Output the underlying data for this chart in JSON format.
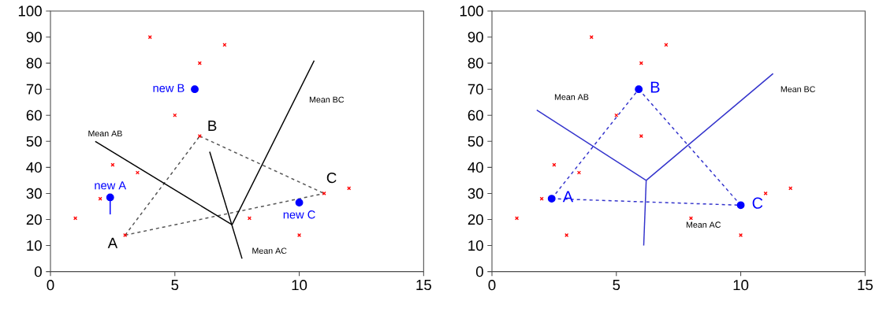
{
  "chart_data": [
    {
      "type": "scatter",
      "xlim": [
        0,
        15
      ],
      "ylim": [
        0,
        100
      ],
      "xticks": [
        0,
        5,
        10,
        15
      ],
      "yticks": [
        0,
        10,
        20,
        30,
        40,
        50,
        60,
        70,
        80,
        90,
        100
      ],
      "grid": false,
      "series": [
        {
          "type": "scatter",
          "marker": "cross",
          "color": "#ff0000",
          "x": [
            1,
            2,
            2.5,
            3,
            3.5,
            4,
            5,
            6,
            6,
            7,
            8,
            10,
            11,
            12
          ],
          "values": [
            20.5,
            28,
            41,
            14,
            38,
            90,
            60,
            80,
            52,
            87,
            20.5,
            14,
            30,
            32
          ]
        },
        {
          "type": "line",
          "line_style": "dashed",
          "color": "#555555",
          "x": [
            3,
            6
          ],
          "values": [
            14,
            52
          ]
        },
        {
          "type": "line",
          "line_style": "dashed",
          "color": "#555555",
          "x": [
            6,
            11
          ],
          "values": [
            52,
            30
          ]
        },
        {
          "type": "line",
          "line_style": "dashed",
          "color": "#555555",
          "x": [
            3,
            11
          ],
          "values": [
            14,
            30
          ]
        },
        {
          "type": "line",
          "line_style": "solid",
          "color": "#000000",
          "x": [
            1.8,
            7.3
          ],
          "values": [
            50,
            18
          ]
        },
        {
          "type": "line",
          "line_style": "solid",
          "color": "#000000",
          "x": [
            7.3,
            10.6
          ],
          "values": [
            18,
            81
          ]
        },
        {
          "type": "line",
          "line_style": "solid",
          "color": "#000000",
          "x": [
            6.4,
            7.7
          ],
          "values": [
            46,
            5
          ]
        },
        {
          "type": "line",
          "line_style": "solid",
          "color": "#0000ff",
          "x": [
            2.4,
            2.4
          ],
          "values": [
            28.5,
            22
          ]
        },
        {
          "type": "scatter",
          "marker": "circle",
          "name": "new A",
          "color": "#0000ff",
          "x": [
            2.4
          ],
          "values": [
            28.5
          ]
        },
        {
          "type": "scatter",
          "marker": "circle",
          "name": "new B",
          "color": "#0000ff",
          "x": [
            5.8
          ],
          "values": [
            70
          ]
        },
        {
          "type": "scatter",
          "marker": "circle",
          "name": "new C",
          "color": "#0000ff",
          "x": [
            10
          ],
          "values": [
            26.5
          ]
        }
      ],
      "annotations": [
        "Mean AB",
        "Mean BC",
        "Mean AC",
        "A",
        "B",
        "C"
      ]
    },
    {
      "type": "scatter",
      "xlim": [
        0,
        15
      ],
      "ylim": [
        0,
        100
      ],
      "xticks": [
        0,
        5,
        10,
        15
      ],
      "yticks": [
        0,
        10,
        20,
        30,
        40,
        50,
        60,
        70,
        80,
        90,
        100
      ],
      "grid": false,
      "series": [
        {
          "type": "scatter",
          "marker": "cross",
          "color": "#ff0000",
          "x": [
            1,
            2,
            2.5,
            3,
            3.5,
            4,
            5,
            6,
            6,
            7,
            8,
            10,
            11,
            12
          ],
          "values": [
            20.5,
            28,
            41,
            14,
            38,
            90,
            60,
            80,
            52,
            87,
            20.5,
            14,
            30,
            32
          ]
        },
        {
          "type": "line",
          "line_style": "dashed",
          "color": "#3333cc",
          "x": [
            2.4,
            5.9
          ],
          "values": [
            28,
            70
          ]
        },
        {
          "type": "line",
          "line_style": "dashed",
          "color": "#3333cc",
          "x": [
            5.9,
            10
          ],
          "values": [
            70,
            25.5
          ]
        },
        {
          "type": "line",
          "line_style": "dashed",
          "color": "#3333cc",
          "x": [
            2.4,
            10
          ],
          "values": [
            28,
            25.5
          ]
        },
        {
          "type": "line",
          "line_style": "solid",
          "color": "#3333cc",
          "x": [
            1.8,
            6.2
          ],
          "values": [
            62,
            35
          ]
        },
        {
          "type": "line",
          "line_style": "solid",
          "color": "#3333cc",
          "x": [
            6.2,
            11.3
          ],
          "values": [
            35,
            76
          ]
        },
        {
          "type": "line",
          "line_style": "solid",
          "color": "#3333cc",
          "x": [
            6.1,
            6.2
          ],
          "values": [
            10,
            35
          ]
        },
        {
          "type": "scatter",
          "marker": "circle",
          "name": "A",
          "color": "#0000ff",
          "x": [
            2.4
          ],
          "values": [
            28
          ]
        },
        {
          "type": "scatter",
          "marker": "circle",
          "name": "B",
          "color": "#0000ff",
          "x": [
            5.9
          ],
          "values": [
            70
          ]
        },
        {
          "type": "scatter",
          "marker": "circle",
          "name": "C",
          "color": "#0000ff",
          "x": [
            10
          ],
          "values": [
            25.5
          ]
        }
      ],
      "annotations": [
        "Mean AB",
        "Mean BC",
        "Mean AC"
      ]
    }
  ]
}
